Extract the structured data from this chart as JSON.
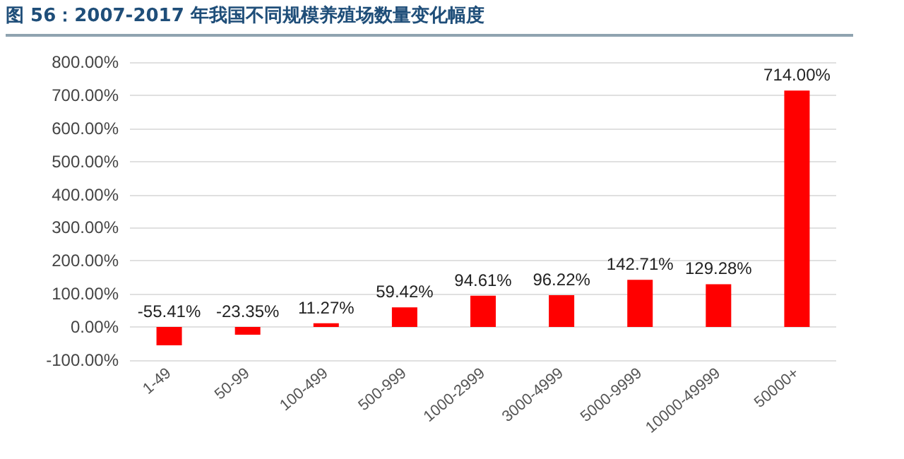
{
  "chart_data": {
    "type": "bar",
    "title": "图 56：2007-2017 年我国不同规模养殖场数量变化幅度",
    "categories": [
      "1-49",
      "50-99",
      "100-499",
      "500-999",
      "1000-2999",
      "3000-4999",
      "5000-9999",
      "10000-49999",
      "50000+"
    ],
    "values": [
      -55.41,
      -23.35,
      11.27,
      59.42,
      94.61,
      96.22,
      142.71,
      129.28,
      714.0
    ],
    "value_labels": [
      "-55.41%",
      "-23.35%",
      "11.27%",
      "59.42%",
      "94.61%",
      "96.22%",
      "142.71%",
      "129.28%",
      "714.00%"
    ],
    "color": "#ff0000",
    "ylim": [
      -100,
      800
    ],
    "yticks": [
      {
        "value": -100,
        "label": "-100.00%"
      },
      {
        "value": 0,
        "label": "0.00%"
      },
      {
        "value": 100,
        "label": "100.00%"
      },
      {
        "value": 200,
        "label": "200.00%"
      },
      {
        "value": 300,
        "label": "300.00%"
      },
      {
        "value": 400,
        "label": "400.00%"
      },
      {
        "value": 500,
        "label": "500.00%"
      },
      {
        "value": 600,
        "label": "600.00%"
      },
      {
        "value": 700,
        "label": "700.00%"
      },
      {
        "value": 800,
        "label": "800.00%"
      }
    ],
    "grid": "y"
  }
}
